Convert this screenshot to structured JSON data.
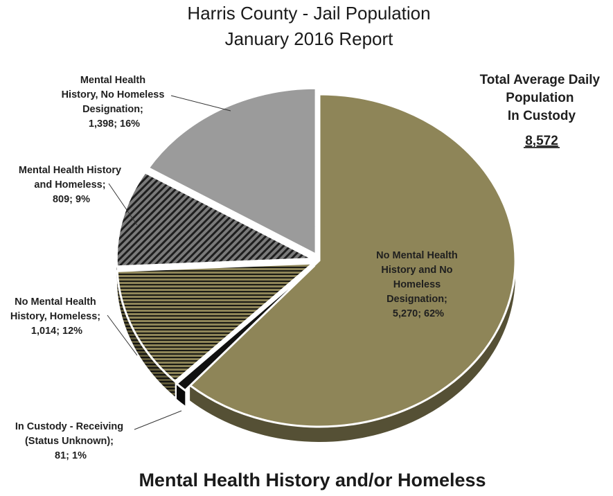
{
  "chart_data": {
    "type": "pie",
    "title": "Harris County - Jail Population",
    "subtitle": "January 2016 Report",
    "total": {
      "lines": [
        "Total Average Daily",
        "Population",
        "In Custody"
      ],
      "value": "8,572"
    },
    "footer": "Mental Health History and/or Homeless",
    "slices": [
      {
        "name": "No Mental Health History and No Homeless Designation",
        "value": 5270,
        "percent": 62,
        "color": "#8e8558",
        "pattern": "solid",
        "label_lines": [
          "No Mental Health",
          "History and No",
          "Homeless",
          "Designation;",
          "5,270; 62%"
        ]
      },
      {
        "name": "In Custody - Receiving (Status Unknown)",
        "value": 81,
        "percent": 1,
        "color": "#111111",
        "pattern": "solid",
        "label_lines": [
          "In Custody - Receiving",
          "(Status Unknown);",
          "81; 1%"
        ]
      },
      {
        "name": "No Mental Health History, Homeless",
        "value": 1014,
        "percent": 12,
        "color": "#8e8558",
        "pattern": "horizontal-stripes",
        "label_lines": [
          "No Mental Health",
          "History, Homeless;",
          "1,014; 12%"
        ]
      },
      {
        "name": "Mental Health History and Homeless",
        "value": 809,
        "percent": 9,
        "color": "#7a7a7a",
        "pattern": "diagonal-stripes",
        "label_lines": [
          "Mental Health History",
          "and Homeless;",
          "809; 9%"
        ]
      },
      {
        "name": "Mental Health History, No Homeless Designation",
        "value": 1398,
        "percent": 16,
        "color": "#9b9b9b",
        "pattern": "solid",
        "label_lines": [
          "Mental Health",
          "History, No Homeless",
          "Designation;",
          "1,398; 16%"
        ]
      }
    ]
  }
}
